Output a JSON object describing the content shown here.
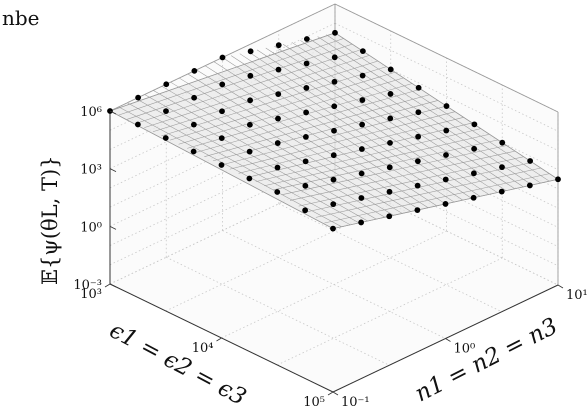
{
  "header_fragment": "nbe",
  "chart_data": {
    "type": "scatter",
    "title": "",
    "view": "3d surface with scatter points",
    "xlabel": "ϵ1 = ϵ2 = ϵ3",
    "ylabel": "n1 = n2 = n3",
    "zlabel": "𝔼{ψ(θL, T)}",
    "x_scale": "log",
    "y_scale": "log",
    "z_scale": "log",
    "x_ticks": [
      {
        "value": 1000,
        "label": "10³"
      },
      {
        "value": 10000,
        "label": "10⁴"
      },
      {
        "value": 100000,
        "label": "10⁵"
      }
    ],
    "y_ticks": [
      {
        "value": 0.1,
        "label": "10⁻¹"
      },
      {
        "value": 1,
        "label": "10⁰"
      },
      {
        "value": 10,
        "label": "10¹"
      }
    ],
    "z_ticks": [
      {
        "value": 0.001,
        "label": "10⁻³"
      },
      {
        "value": 1,
        "label": "10⁰"
      },
      {
        "value": 1000,
        "label": "10³"
      },
      {
        "value": 1000000,
        "label": "10⁶"
      }
    ],
    "xlim": [
      1000,
      100000
    ],
    "ylim": [
      0.1,
      10
    ],
    "zlim": [
      0.001,
      1000000
    ],
    "grid": true,
    "surface_color": "#9a9a9a",
    "marker_color": "#000000",
    "sample_grid": {
      "x_values": [
        1000,
        1778,
        3162,
        5623,
        10000,
        17783,
        31623,
        56234,
        100000
      ],
      "y_values": [
        0.1,
        0.1778,
        0.3162,
        0.5623,
        1,
        1.778,
        3.162,
        5.623,
        10
      ],
      "z_model": "z = 1e6 * (1000/x) / y^1.5 (approximate plane in log space)"
    }
  }
}
